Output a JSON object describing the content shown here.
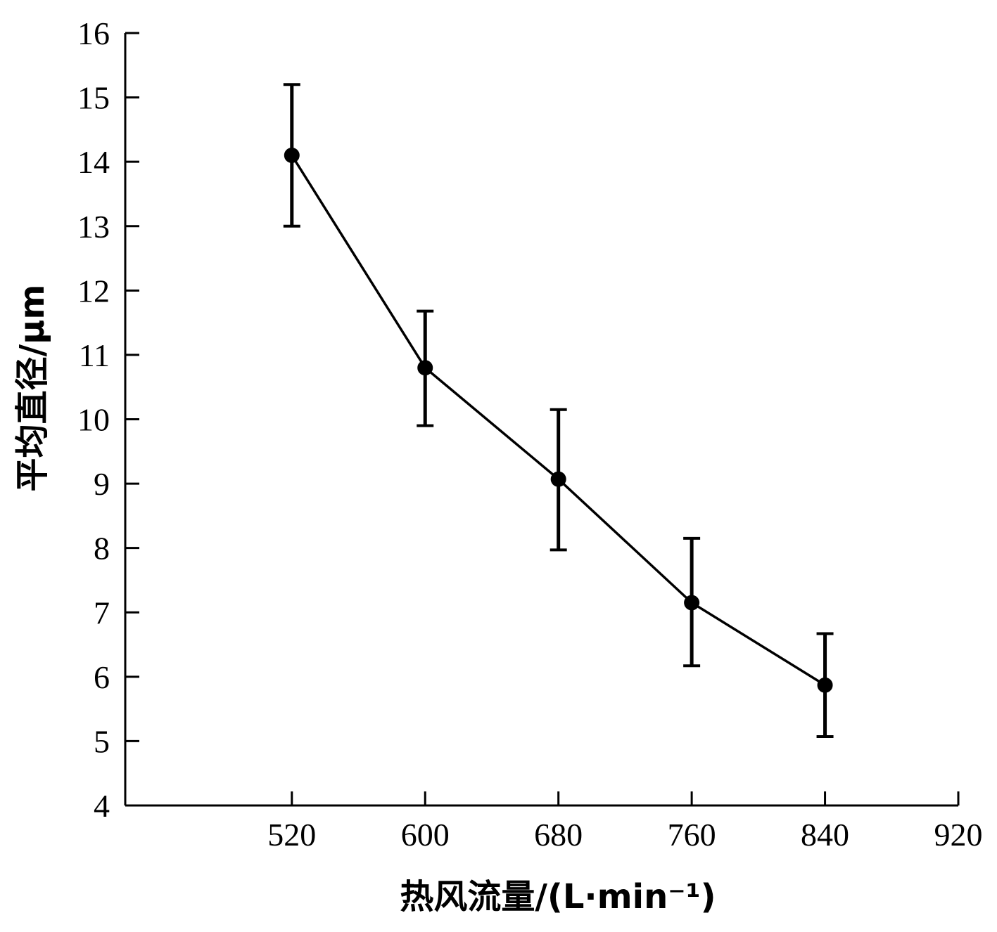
{
  "chart_data": {
    "type": "line",
    "title": "",
    "xlabel": "热风流量/(L·min⁻¹)",
    "ylabel": "平均直径/μm",
    "xlim": [
      420,
      920
    ],
    "ylim": [
      4,
      16
    ],
    "x_ticks": [
      520,
      600,
      680,
      760,
      840,
      920
    ],
    "y_ticks": [
      4,
      5,
      6,
      7,
      8,
      9,
      10,
      11,
      12,
      13,
      14,
      15,
      16
    ],
    "grid": false,
    "legend": "none",
    "series": [
      {
        "x": [
          520,
          600,
          680,
          760,
          840
        ],
        "y": [
          14.1,
          10.8,
          9.07,
          7.15,
          5.87
        ],
        "error_low": [
          13.0,
          9.9,
          7.97,
          6.17,
          5.07
        ],
        "error_high": [
          15.2,
          11.68,
          10.15,
          8.15,
          6.67
        ],
        "color": "#000000"
      }
    ]
  }
}
